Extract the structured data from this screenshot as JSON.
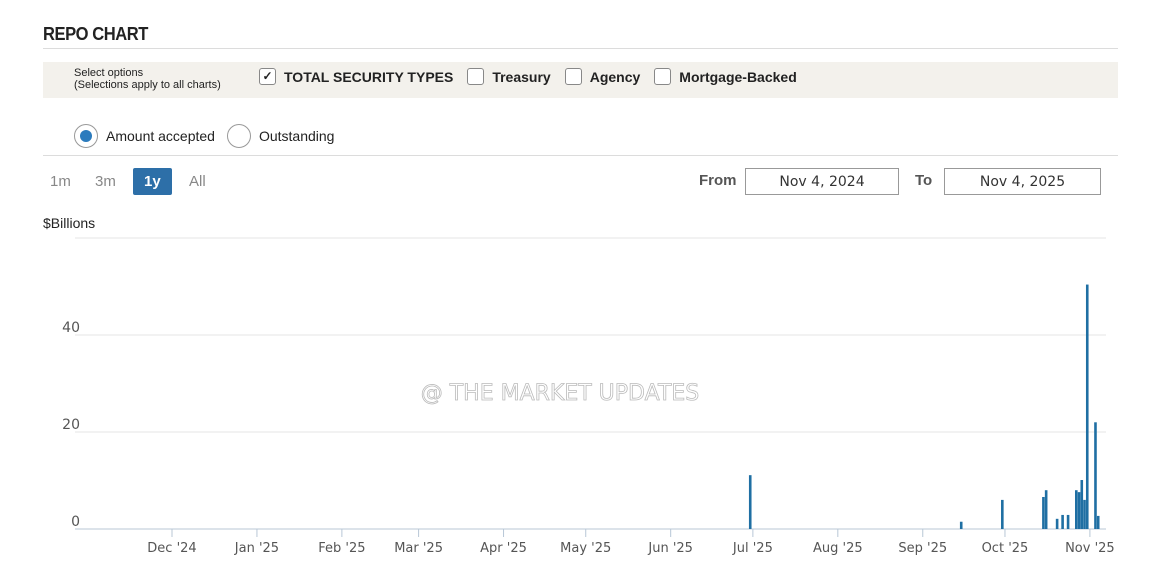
{
  "header": {
    "title": "REPO CHART"
  },
  "options": {
    "label_line1": "Select options",
    "label_line2": "(Selections apply to all charts)",
    "checkboxes": [
      {
        "label": "TOTAL SECURITY TYPES",
        "checked": true
      },
      {
        "label": "Treasury",
        "checked": false
      },
      {
        "label": "Agency",
        "checked": false
      },
      {
        "label": "Mortgage-Backed",
        "checked": false
      }
    ]
  },
  "radios": [
    {
      "label": "Amount accepted",
      "selected": true
    },
    {
      "label": "Outstanding",
      "selected": false
    }
  ],
  "ranges": [
    {
      "label": "1m"
    },
    {
      "label": "3m"
    },
    {
      "label": "1y",
      "active": true
    },
    {
      "label": "All"
    }
  ],
  "date_range": {
    "from_label": "From",
    "from": "Nov 4, 2024",
    "to_label": "To",
    "to": "Nov 4, 2025"
  },
  "watermark": "@ THE MARKET UPDATES",
  "chart_data": {
    "type": "bar",
    "title": "",
    "ylabel": "$Billions",
    "xlabel": "",
    "ylim": [
      0,
      60
    ],
    "xlim": [
      "2024-11-04",
      "2025-11-04"
    ],
    "grid": true,
    "color": "#1f6fa3",
    "yticks": [
      0,
      20,
      40
    ],
    "xtick_labels": [
      "Dec '24",
      "Jan '25",
      "Feb '25",
      "Mar '25",
      "Apr '25",
      "May '25",
      "Jun '25",
      "Jul '25",
      "Aug '25",
      "Sep '25",
      "Oct '25",
      "Nov '25"
    ],
    "xtick_dates": [
      "2024-12-01",
      "2025-01-01",
      "2025-02-01",
      "2025-03-01",
      "2025-04-01",
      "2025-05-01",
      "2025-06-01",
      "2025-07-01",
      "2025-08-01",
      "2025-09-01",
      "2025-10-01",
      "2025-11-01"
    ],
    "points": [
      {
        "date": "2025-06-30",
        "value": 11.1
      },
      {
        "date": "2025-09-15",
        "value": 1.5
      },
      {
        "date": "2025-09-30",
        "value": 6.0
      },
      {
        "date": "2025-10-15",
        "value": 6.6
      },
      {
        "date": "2025-10-16",
        "value": 8.0
      },
      {
        "date": "2025-10-20",
        "value": 2.1
      },
      {
        "date": "2025-10-22",
        "value": 2.9
      },
      {
        "date": "2025-10-24",
        "value": 2.9
      },
      {
        "date": "2025-10-27",
        "value": 8.0
      },
      {
        "date": "2025-10-28",
        "value": 7.6
      },
      {
        "date": "2025-10-29",
        "value": 10.1
      },
      {
        "date": "2025-10-30",
        "value": 6.0
      },
      {
        "date": "2025-10-31",
        "value": 50.4
      },
      {
        "date": "2025-11-03",
        "value": 22.0
      },
      {
        "date": "2025-11-04",
        "value": 2.7
      }
    ]
  }
}
